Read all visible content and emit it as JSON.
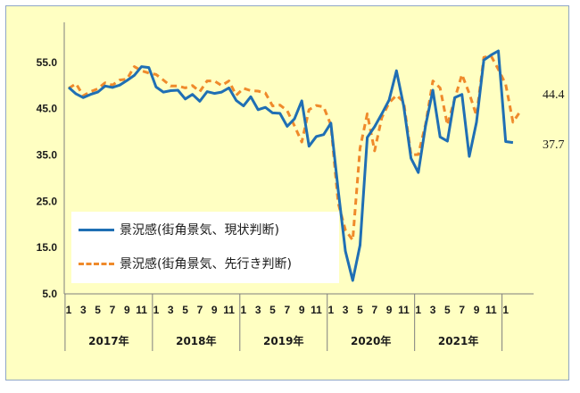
{
  "chart_data": {
    "type": "line",
    "series": [
      {
        "name": "景況感(街角景気、現状判断)",
        "color": "#1f6fb4",
        "style": "solid",
        "values": [
          49.6,
          48.2,
          47.4,
          48.1,
          48.6,
          49.9,
          49.6,
          50.1,
          51.1,
          52.2,
          54.1,
          53.9,
          49.7,
          48.6,
          48.9,
          49.0,
          47.1,
          48.1,
          46.6,
          48.7,
          48.3,
          48.6,
          49.5,
          46.8,
          45.6,
          47.6,
          44.8,
          45.3,
          44.1,
          44.0,
          41.2,
          42.8,
          46.7,
          36.9,
          39.0,
          39.4,
          41.9,
          27.4,
          14.2,
          7.9,
          15.5,
          38.8,
          41.1,
          43.9,
          46.9,
          53.2,
          45.6,
          34.3,
          31.2,
          41.3,
          49.0,
          38.9,
          38.0,
          47.4,
          48.1,
          34.7,
          42.1,
          55.5,
          56.6,
          57.5,
          37.9,
          37.7
        ]
      },
      {
        "name": "景況感(街角景気、先行き判断)",
        "color": "#ef8a2b",
        "style": "dashed",
        "values": [
          49.4,
          50.4,
          47.8,
          48.7,
          49.3,
          50.6,
          50.1,
          51.2,
          51.4,
          54.1,
          53.2,
          52.7,
          52.4,
          51.2,
          49.9,
          49.9,
          49.5,
          50.0,
          48.7,
          51.0,
          51.0,
          50.0,
          51.0,
          47.9,
          49.4,
          48.9,
          48.8,
          48.4,
          45.6,
          45.8,
          44.6,
          41.3,
          37.8,
          44.8,
          45.7,
          45.4,
          41.5,
          24.6,
          18.8,
          16.6,
          36.5,
          43.9,
          35.9,
          43.1,
          46.3,
          47.9,
          46.5,
          35.0,
          35.1,
          41.6,
          51.0,
          49.5,
          41.5,
          47.1,
          52.4,
          48.3,
          43.5,
          56.1,
          56.4,
          53.5,
          50.3,
          42.1,
          44.4
        ]
      }
    ],
    "x_month_labels": [
      "1",
      "3",
      "5",
      "7",
      "9",
      "11",
      "1",
      "3",
      "5",
      "7",
      "9",
      "11",
      "1",
      "3",
      "5",
      "7",
      "9",
      "11",
      "1",
      "3",
      "5",
      "7",
      "9",
      "11",
      "1",
      "3",
      "5",
      "7",
      "9",
      "11",
      "1"
    ],
    "x_year_labels": [
      "2017年",
      "2018年",
      "2019年",
      "2020年",
      "2021年"
    ],
    "y_ticks": [
      "5.0",
      "15.0",
      "25.0",
      "35.0",
      "45.0",
      "55.0"
    ],
    "ylim": [
      5,
      60
    ],
    "end_labels": [
      "44.4",
      "37.7"
    ],
    "grid": false,
    "legend_position": "lower-left"
  }
}
